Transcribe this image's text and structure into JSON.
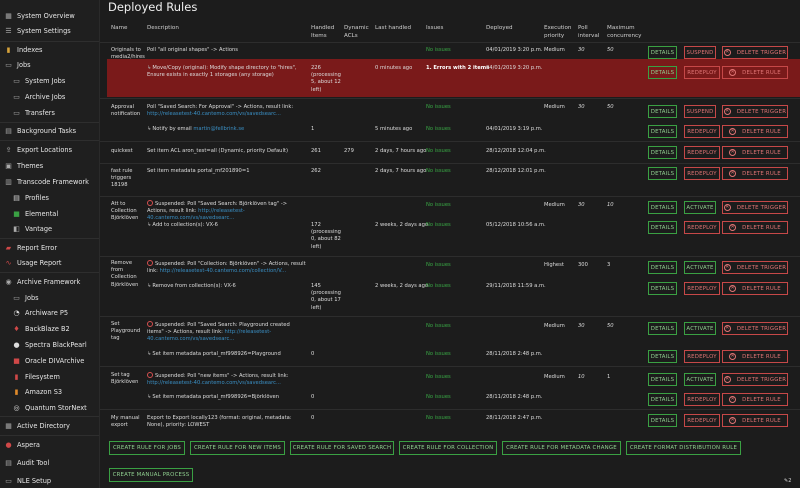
{
  "sidebar": {
    "items": [
      {
        "label": "System Overview",
        "icon": "dashboard-icon"
      },
      {
        "label": "System Settings",
        "icon": "settings-icon"
      },
      {
        "label": "Indexes",
        "icon": "index-icon"
      },
      {
        "label": "Jobs",
        "icon": "folder-icon"
      },
      {
        "label": "System Jobs",
        "icon": "folder-icon"
      },
      {
        "label": "Archive Jobs",
        "icon": "folder-icon"
      },
      {
        "label": "Transfers",
        "icon": "folder-icon"
      },
      {
        "label": "Background Tasks",
        "icon": "tasks-icon"
      },
      {
        "label": "Export Locations",
        "icon": "export-icon"
      },
      {
        "label": "Themes",
        "icon": "themes-icon"
      },
      {
        "label": "Transcode Framework",
        "icon": "transcode-icon"
      },
      {
        "label": "Profiles",
        "icon": "profiles-icon"
      },
      {
        "label": "Elemental",
        "icon": "elemental-icon"
      },
      {
        "label": "Vantage",
        "icon": "vantage-icon"
      },
      {
        "label": "Report Error",
        "icon": "report-icon"
      },
      {
        "label": "Usage Report",
        "icon": "usage-icon"
      },
      {
        "label": "Archive Framework",
        "icon": "archive-icon"
      },
      {
        "label": "Jobs",
        "icon": "folder-icon"
      },
      {
        "label": "Archiware P5",
        "icon": "archiware-icon"
      },
      {
        "label": "BackBlaze B2",
        "icon": "backblaze-icon"
      },
      {
        "label": "Spectra BlackPearl",
        "icon": "spectra-icon"
      },
      {
        "label": "Oracle DIVArchive",
        "icon": "oracle-icon"
      },
      {
        "label": "Filesystem",
        "icon": "filesystem-icon"
      },
      {
        "label": "Amazon S3",
        "icon": "amazon-icon"
      },
      {
        "label": "Quantum StorNext",
        "icon": "quantum-icon"
      },
      {
        "label": "Active Directory",
        "icon": "directory-icon"
      },
      {
        "label": "Aspera",
        "icon": "aspera-icon"
      },
      {
        "label": "Audit Tool",
        "icon": "audit-icon"
      },
      {
        "label": "NLE Setup",
        "icon": "nle-icon"
      }
    ]
  },
  "page": {
    "title": "Deployed Rules"
  },
  "table": {
    "headers": {
      "name": "Name",
      "description": "Description",
      "handled_items": "Handled Items",
      "dynamic_acls": "Dynamic ACLs",
      "last_handled": "Last handled",
      "issues": "Issues",
      "deployed": "Deployed",
      "exec_priority": "Execution priority",
      "poll_interval": "Poll interval",
      "max_concurrency": "Maximum concurrency"
    },
    "cells": {
      "r1_name": "Originals to media2/hires",
      "r1_desc": "Poll \"all original shapes\" -> Actions",
      "r1_issues": "No issues",
      "r1_deployed": "04/01/2019 3:20 p.m.",
      "r1_priority": "Medium",
      "r1_poll": "30",
      "r1_conc": "50",
      "r1a_desc": "Move/Copy (original): Modify shape directory to \"hires\", Ensure exists in exactly 1 storages (any storage)",
      "r1a_handled": "226 (processing 5, about 12 left)",
      "r1a_last": "0 minutes ago",
      "r1a_issues": "1. Errors with 2 items",
      "r1a_deployed": "04/01/2019 3:20 p.m.",
      "r2_name": "Approval notification",
      "r2_desc_a": "Poll \"Saved Search: For Approval\" -> Actions, result link:",
      "r2_desc_link": "http://releasetest-40.cantemo.com/vs/savedsearc...",
      "r2_issues": "No issues",
      "r2_priority": "Medium",
      "r2_poll": "30",
      "r2_conc": "50",
      "r2a_desc": "Notify by email ",
      "r2a_link": "martin@fellbrink.se",
      "r2a_handled": "1",
      "r2a_last": "5 minutes ago",
      "r2a_issues": "No issues",
      "r2a_deployed": "04/01/2019 3:19 p.m.",
      "r3_name": "quickest",
      "r3_desc": "Set item ACL aron_test=all (Dynamic, priority Default)",
      "r3_handled": "261",
      "r3_acls": "279",
      "r3_last": "2 days, 7 hours ago",
      "r3_issues": "No issues",
      "r3_deployed": "28/12/2018 12:04 p.m.",
      "r4_name": "fast rule triggers 18198",
      "r4_desc": "Set item metadata portal_mf201890=1",
      "r4_handled": "262",
      "r4_last": "2 days, 7 hours ago",
      "r4_issues": "No issues",
      "r4_deployed": "28/12/2018 12:01 p.m.",
      "r5_name": "Att to Collection Björklöven",
      "r5_susp": "Suspended:",
      "r5_desc": " Poll \"Saved Search: Björklöven tag\" -> Actions, result link: ",
      "r5_link": "http://releasetest-40.cantemo.com/vs/savedsearc...",
      "r5_issues": "No issues",
      "r5_priority": "Medium",
      "r5_poll": "30",
      "r5_conc": "10",
      "r5a_desc": "Add to collection(s): VX-6",
      "r5a_handled": "172 (processing 0, about 82 left)",
      "r5a_last": "2 weeks, 2 days ago",
      "r5a_issues": "No issues",
      "r5a_deployed": "05/12/2018 10:56 a.m.",
      "r6_name": "Remove from Collection Björklöven",
      "r6_susp": "Suspended:",
      "r6_desc": " Poll \"Collection: Björklöven\" -> Actions, result link: ",
      "r6_link": "http://releasetest-40.cantemo.com/collection/V...",
      "r6_issues": "No issues",
      "r6_priority": "Highest",
      "r6_poll": "300",
      "r6_conc": "3",
      "r6a_desc": "Remove from collection(s): VX-6",
      "r6a_handled": "145 (processing 0, about 17 left)",
      "r6a_last": "2 weeks, 2 days ago",
      "r6a_issues": "No issues",
      "r6a_deployed": "29/11/2018 11:59 a.m.",
      "r7_name": "Set Playground tag",
      "r7_susp": "Suspended:",
      "r7_desc": " Poll \"Saved Search: Playground created items\" -> Actions, result link: ",
      "r7_link": "http://releasetest-40.cantemo.com/vs/savedsearc...",
      "r7_issues": "No issues",
      "r7_priority": "Medium",
      "r7_poll": "30",
      "r7_conc": "50",
      "r7a_desc": "Set item metadata portal_mf998926=Playground",
      "r7a_handled": "0",
      "r7a_issues": "No issues",
      "r7a_deployed": "28/11/2018 2:48 p.m.",
      "r8_name": "Set tag Björklöven",
      "r8_susp": "Suspended:",
      "r8_desc": " Poll \"new items\" -> Actions, result link: ",
      "r8_link": "http://releasetest-40.cantemo.com/vs/savedsearc...",
      "r8_issues": "No issues",
      "r8_priority": "Medium",
      "r8_poll": "10",
      "r8_conc": "1",
      "r8a_desc": "Set item metadata portal_mf998926=Björklöven",
      "r8a_handled": "0",
      "r8a_issues": "No issues",
      "r8a_deployed": "28/11/2018 2:48 p.m.",
      "r9_name": "My manual export",
      "r9_desc": "Export to Export locally123 (format: original, metadata: None), priority: LOWEST",
      "r9_handled": "0",
      "r9_issues": "No issues",
      "r9_deployed": "28/11/2018 2:47 p.m."
    },
    "buttons": {
      "details": "DETAILS",
      "suspend": "SUSPEND",
      "delete_trigger": "DELETE TRIGGER",
      "redeploy": "REDEPLOY",
      "delete_rule": "DELETE RULE",
      "activate": "ACTIVATE"
    }
  },
  "bottom_buttons": {
    "jobs": "CREATE RULE FOR JOBS",
    "new_items": "CREATE RULE FOR NEW ITEMS",
    "saved_search": "CREATE RULE FOR SAVED SEARCH",
    "collection": "CREATE RULE FOR COLLECTION",
    "metadata_change": "CREATE RULE FOR METADATA CHANGE",
    "format_distribution": "CREATE FORMAT DISTRIBUTION RULE",
    "manual_process": "CREATE MANUAL PROCESS"
  },
  "help_badge": "2",
  "colors": {
    "error_row": "#7a1a1a",
    "ok": "#39a845",
    "link": "#3a8fc4",
    "button_green": "#3aa043",
    "button_red": "#c64848"
  }
}
